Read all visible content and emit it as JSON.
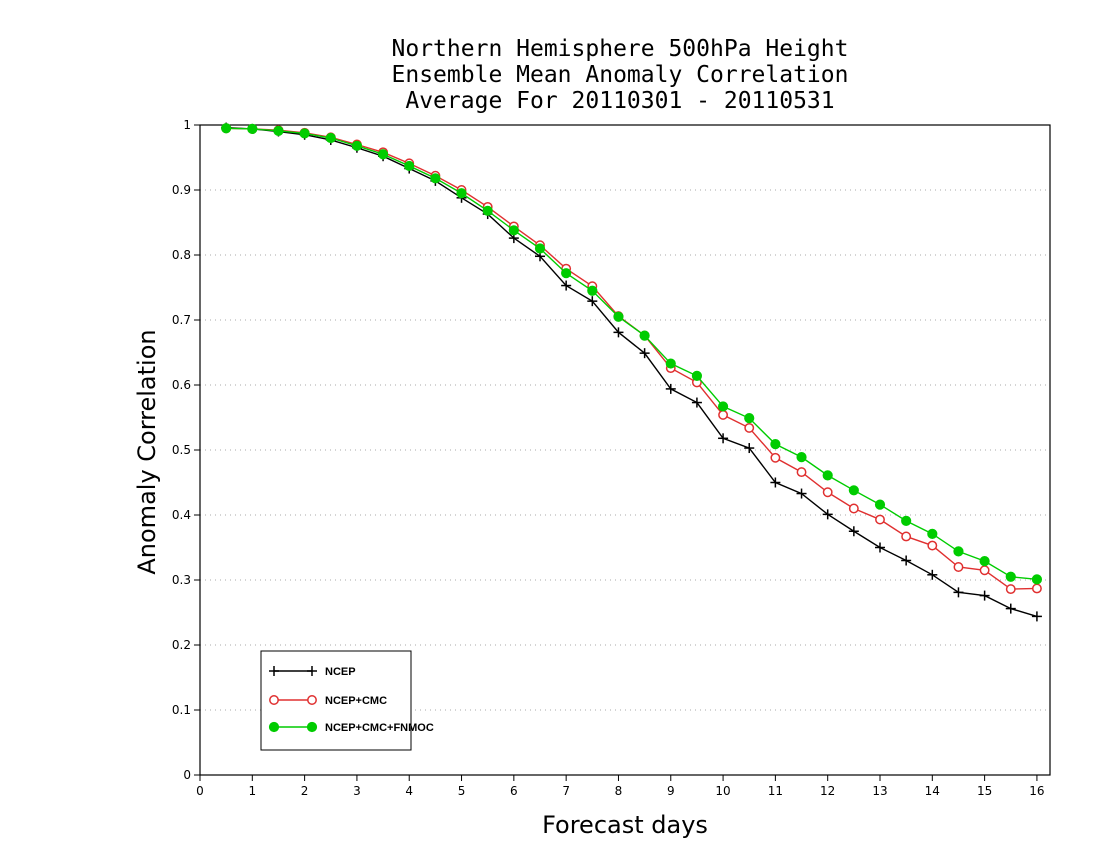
{
  "chart_data": {
    "type": "line",
    "title_lines": [
      "Northern Hemisphere 500hPa Height",
      "Ensemble Mean Anomaly Correlation",
      "Average For 20110301 - 20110531"
    ],
    "xlabel": "Forecast days",
    "ylabel": "Anomaly Correlation",
    "xlim": [
      0,
      16.25
    ],
    "ylim": [
      0,
      1
    ],
    "xticks": [
      0,
      1,
      2,
      3,
      4,
      5,
      6,
      7,
      8,
      9,
      10,
      11,
      12,
      13,
      14,
      15,
      16
    ],
    "yticks": [
      0,
      0.1,
      0.2,
      0.3,
      0.4,
      0.5,
      0.6,
      0.7,
      0.8,
      0.9,
      1
    ],
    "grid": "horizontal dotted",
    "legend_position": "bottom-left",
    "x": [
      0.5,
      1,
      1.5,
      2,
      2.5,
      3,
      3.5,
      4,
      4.5,
      5,
      5.5,
      6,
      6.5,
      7,
      7.5,
      8,
      8.5,
      9,
      9.5,
      10,
      10.5,
      11,
      11.5,
      12,
      12.5,
      13,
      13.5,
      14,
      14.5,
      15,
      15.5,
      16
    ],
    "series": [
      {
        "name": "NCEP",
        "color": "#000000",
        "marker": "plus",
        "values": [
          0.996,
          0.994,
          0.99,
          0.985,
          0.977,
          0.965,
          0.952,
          0.933,
          0.914,
          0.888,
          0.863,
          0.826,
          0.798,
          0.753,
          0.729,
          0.681,
          0.649,
          0.594,
          0.573,
          0.518,
          0.503,
          0.45,
          0.433,
          0.401,
          0.375,
          0.35,
          0.33,
          0.308,
          0.281,
          0.276,
          0.256,
          0.244
        ]
      },
      {
        "name": "NCEP+CMC",
        "color": "#e03030",
        "marker": "open-circle",
        "values": [
          0.995,
          0.994,
          0.992,
          0.988,
          0.981,
          0.97,
          0.958,
          0.941,
          0.922,
          0.9,
          0.874,
          0.844,
          0.815,
          0.779,
          0.752,
          0.706,
          0.676,
          0.626,
          0.604,
          0.554,
          0.534,
          0.488,
          0.466,
          0.435,
          0.41,
          0.393,
          0.367,
          0.353,
          0.32,
          0.315,
          0.286,
          0.287
        ]
      },
      {
        "name": "NCEP+CMC+FNMOC",
        "color": "#00cc00",
        "marker": "filled-circle",
        "values": [
          0.995,
          0.994,
          0.991,
          0.987,
          0.98,
          0.968,
          0.955,
          0.937,
          0.918,
          0.895,
          0.868,
          0.838,
          0.81,
          0.772,
          0.745,
          0.705,
          0.676,
          0.633,
          0.614,
          0.567,
          0.549,
          0.509,
          0.489,
          0.461,
          0.438,
          0.416,
          0.391,
          0.371,
          0.344,
          0.329,
          0.305,
          0.301
        ]
      }
    ]
  }
}
